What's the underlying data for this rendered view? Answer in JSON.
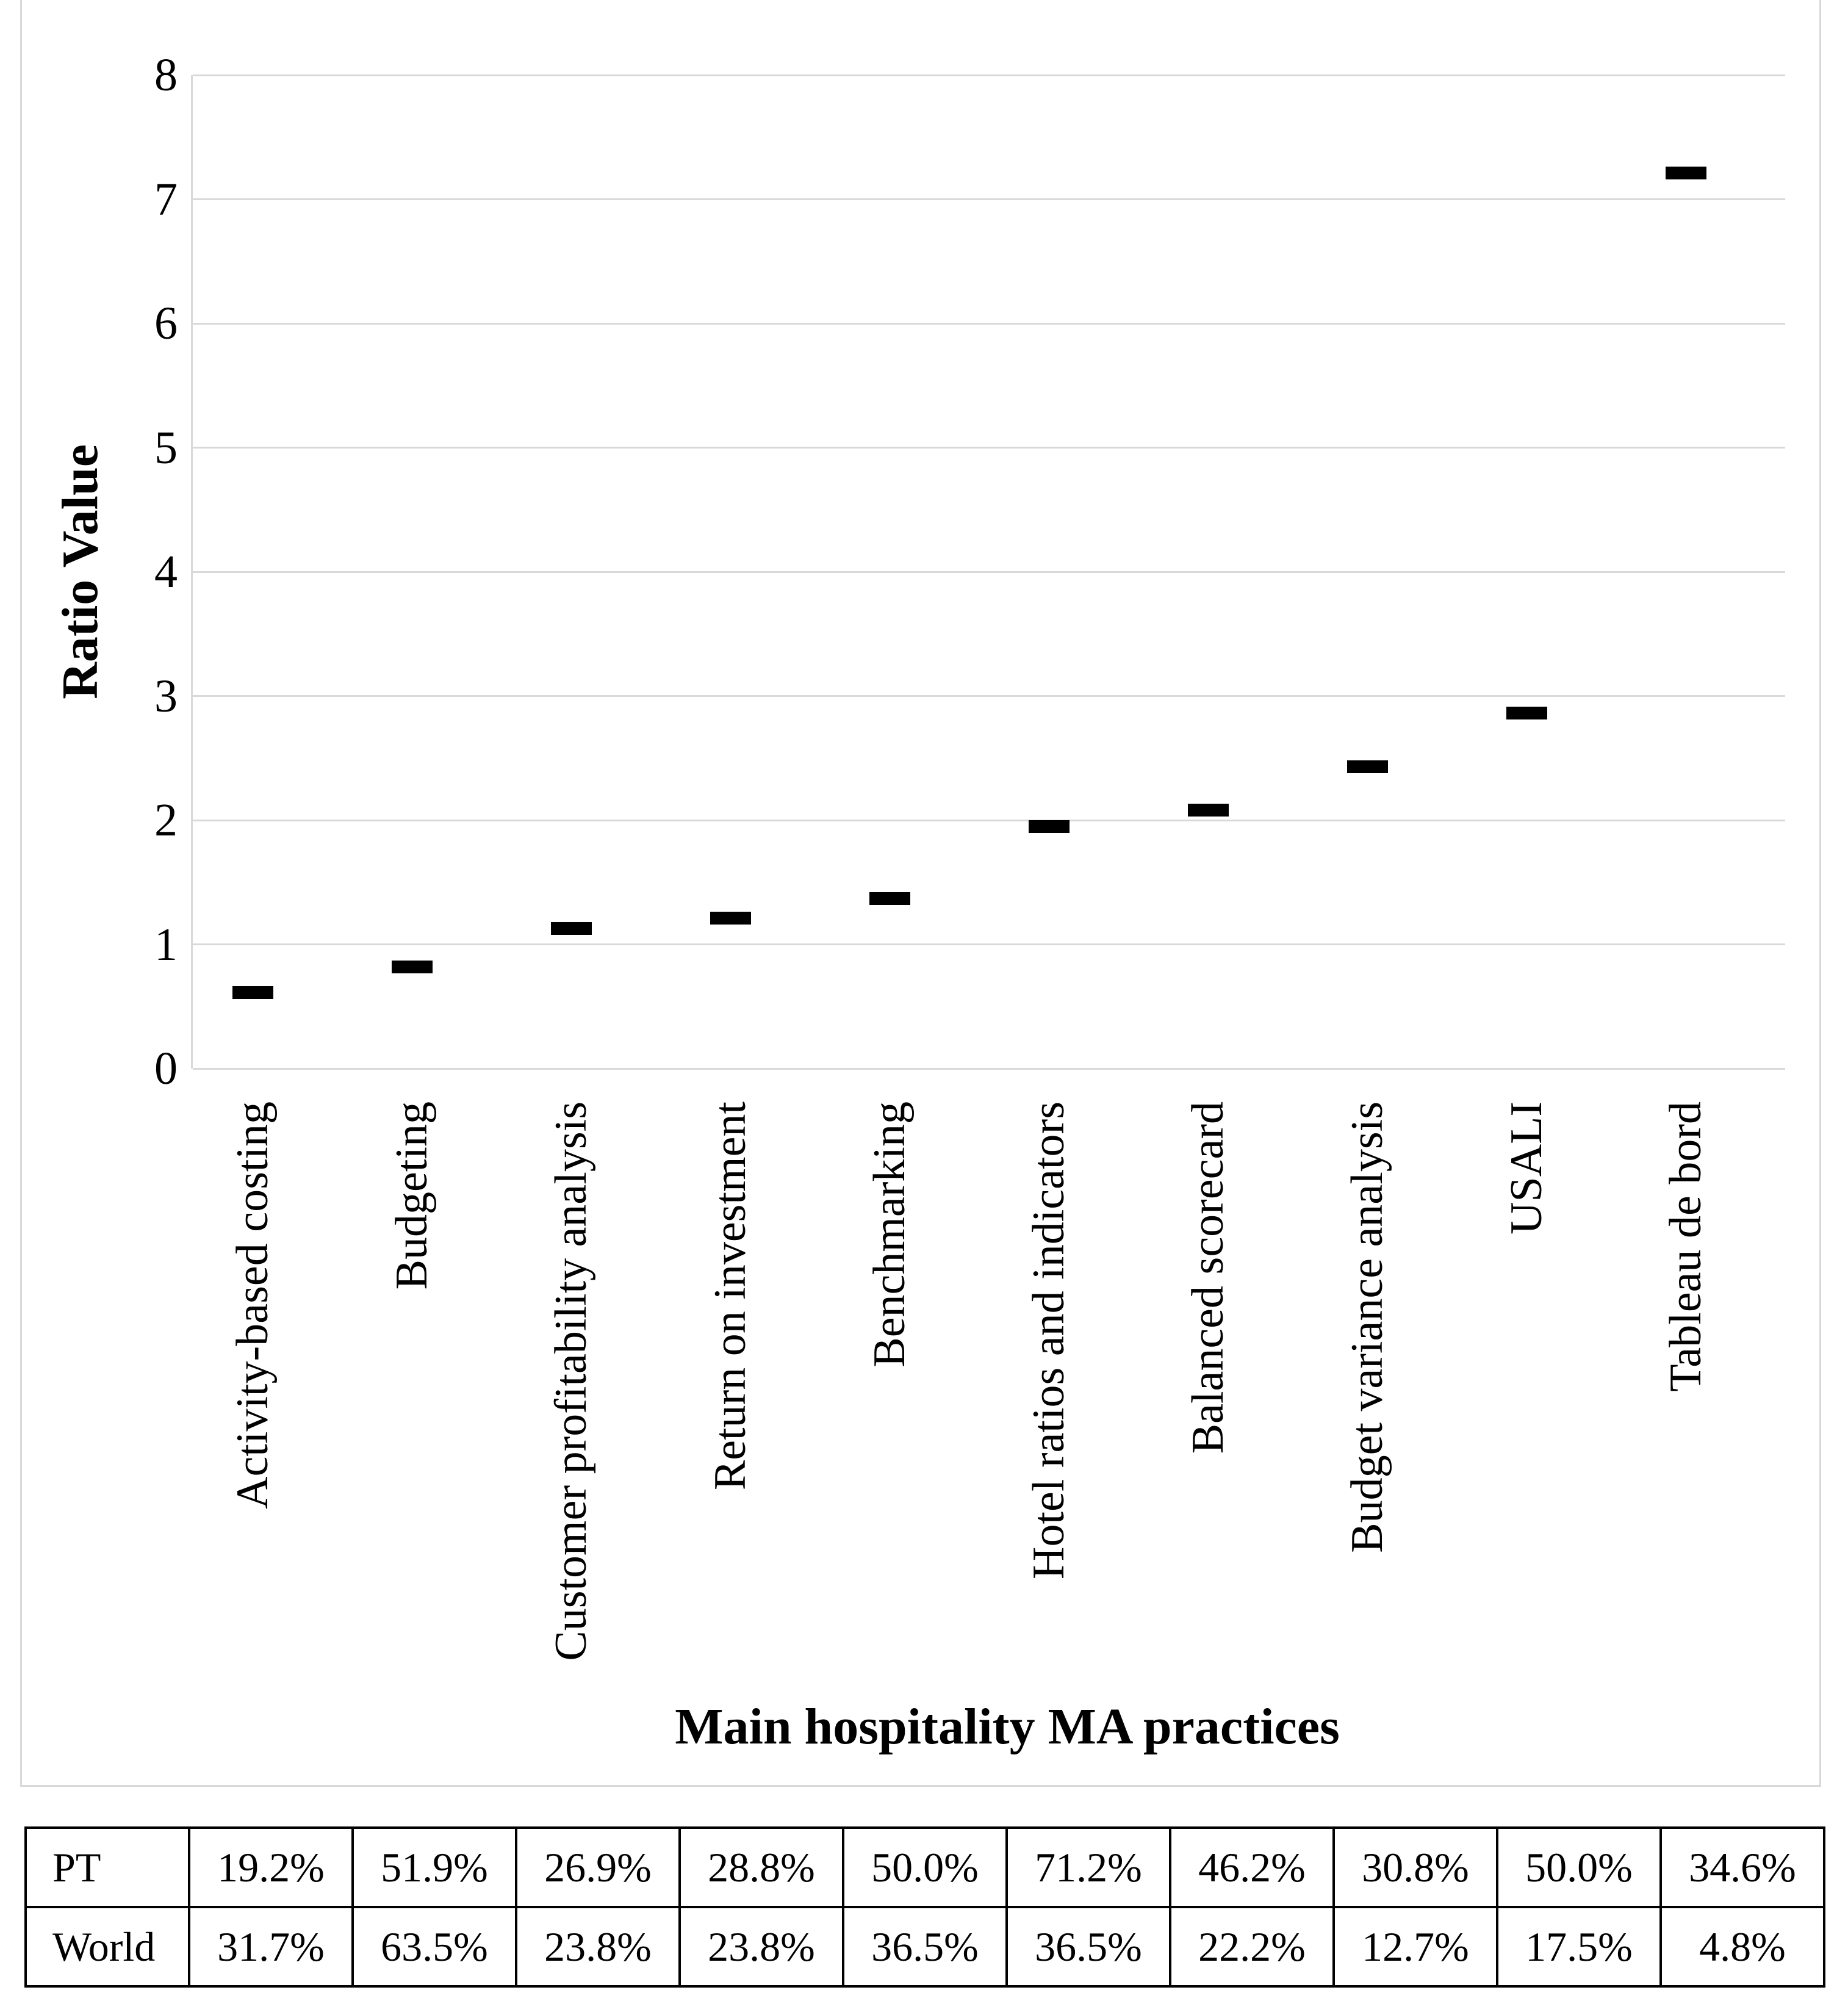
{
  "chart_data": {
    "type": "scatter",
    "marker_style": "dash",
    "title": "",
    "xlabel": "Main hospitality MA practices",
    "ylabel": "Ratio Value",
    "ylim": [
      0,
      8
    ],
    "yticks": [
      8,
      7,
      6,
      5,
      4,
      3,
      2,
      1,
      0
    ],
    "grid": true,
    "legend": "none",
    "categories": [
      "Activity-based costing",
      "Budgeting",
      "Customer profitability analysis",
      "Return on investment",
      "Benchmarking",
      "Hotel ratios and indicators",
      "Balanced scorecard",
      "Budget variance analysis",
      "USALI",
      "Tableau de bord"
    ],
    "series": [
      {
        "name": "Ratio Value (PT/World)",
        "values": [
          0.61,
          0.82,
          1.13,
          1.21,
          1.37,
          1.95,
          2.08,
          2.43,
          2.86,
          7.21
        ]
      }
    ]
  },
  "table": {
    "rows": [
      {
        "label": "PT",
        "values": [
          "19.2%",
          "51.9%",
          "26.9%",
          "28.8%",
          "50.0%",
          "71.2%",
          "46.2%",
          "30.8%",
          "50.0%",
          "34.6%"
        ]
      },
      {
        "label": "World",
        "values": [
          "31.7%",
          "63.5%",
          "23.8%",
          "23.8%",
          "36.5%",
          "36.5%",
          "22.2%",
          "12.7%",
          "17.5%",
          "4.8%"
        ]
      }
    ]
  },
  "colors": {
    "marker": "#000000",
    "gridline": "#d9d9d9",
    "chart_border": "#d9d9d9",
    "table_border": "#000000",
    "text": "#000000"
  }
}
